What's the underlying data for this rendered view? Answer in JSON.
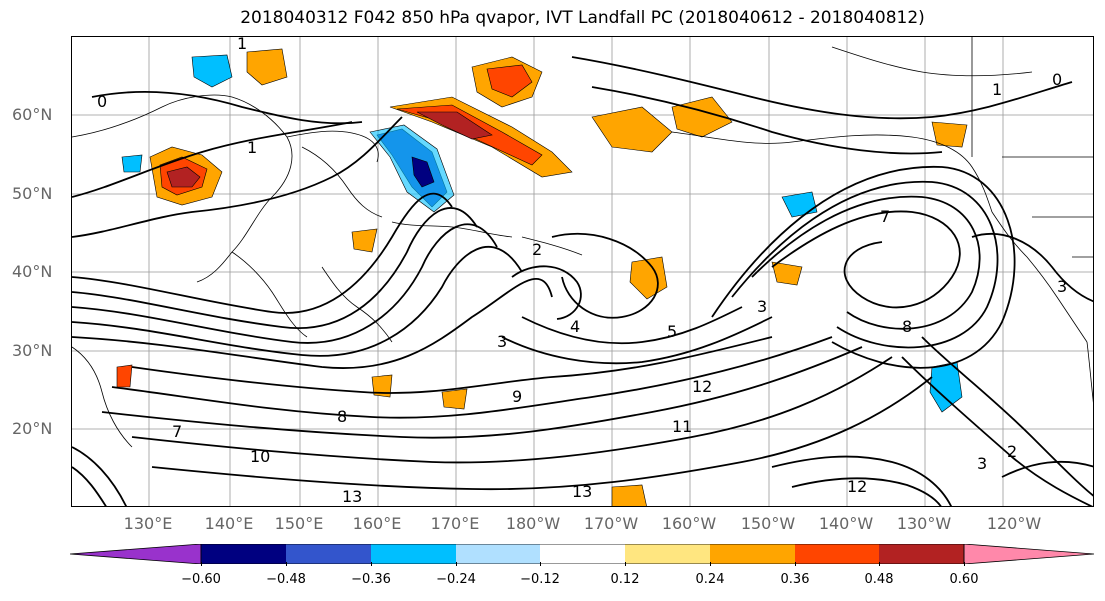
{
  "title": "2018040312 F042 850 hPa qvapor, IVT Landfall PC (2018040612 - 2018040812)",
  "map": {
    "lat_labels": [
      "60°N",
      "50°N",
      "40°N",
      "30°N",
      "20°N"
    ],
    "lon_labels": [
      "130°E",
      "140°E",
      "150°E",
      "160°E",
      "170°E",
      "180°W",
      "170°W",
      "160°W",
      "150°W",
      "140°W",
      "130°W",
      "120°W"
    ],
    "contour_labels": [
      "1",
      "0",
      "1",
      "1",
      "0",
      "2",
      "3",
      "4",
      "5",
      "3",
      "7",
      "9",
      "12",
      "8",
      "10",
      "13",
      "11",
      "13",
      "12",
      "3",
      "2",
      "3",
      "8",
      "7"
    ]
  },
  "colorbar": {
    "colors": [
      "#9932cc",
      "#000080",
      "#3355cc",
      "#00bfff",
      "#b0e0ff",
      "#ffffff",
      "#ffe680",
      "#ffa500",
      "#ff4500",
      "#b22222",
      "#ff88aa"
    ],
    "ticks": [
      "−0.60",
      "−0.48",
      "−0.36",
      "−0.24",
      "−0.12",
      "0.12",
      "0.24",
      "0.36",
      "0.48",
      "0.60"
    ]
  }
}
